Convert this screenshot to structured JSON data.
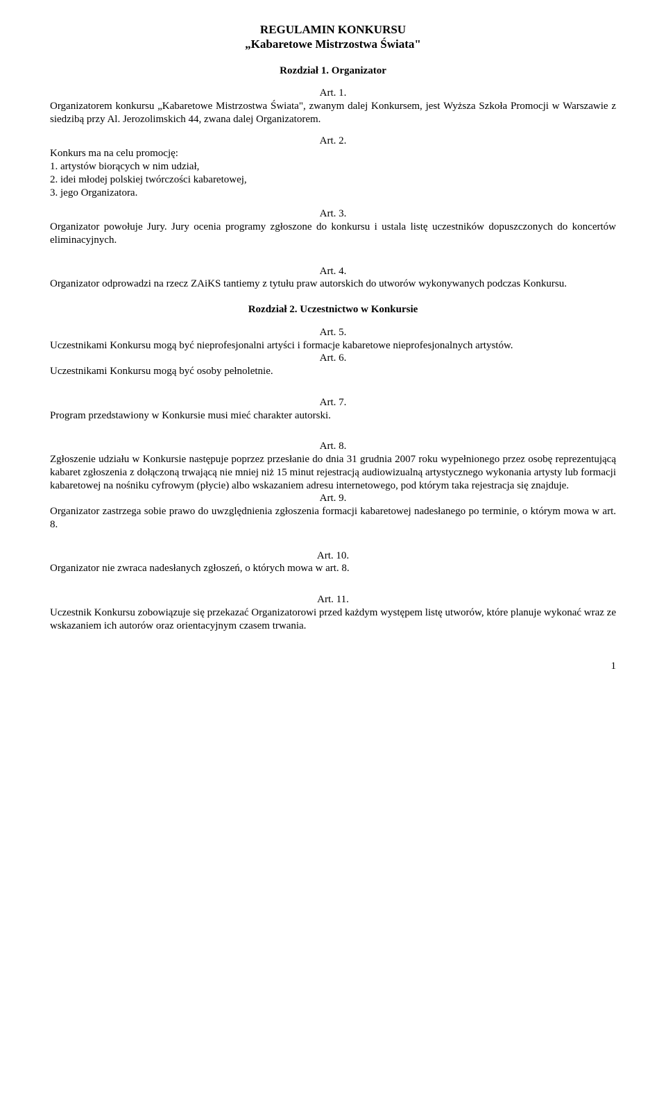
{
  "doc": {
    "title_main": "REGULAMIN KONKURSU",
    "title_sub": "„Kabaretowe Mistrzostwa Świata\"",
    "chapter1": "Rozdział 1. Organizator",
    "art1_label": "Art. 1.",
    "art1_body": "Organizatorem konkursu „Kabaretowe Mistrzostwa Świata\", zwanym dalej Konkursem, jest Wyższa Szkoła Promocji w Warszawie z siedzibą przy Al. Jerozolimskich 44, zwana dalej Organizatorem.",
    "art2_label": "Art. 2.",
    "art2_intro": "Konkurs ma na celu promocję:",
    "art2_item1": "1. artystów biorących w nim udział,",
    "art2_item2": "2. idei młodej polskiej twórczości kabaretowej,",
    "art2_item3": "3. jego Organizatora.",
    "art3_label": "Art. 3.",
    "art3_body": "Organizator powołuje Jury. Jury ocenia programy zgłoszone do konkursu i ustala listę uczestników dopuszczonych do koncertów eliminacyjnych.",
    "art4_label": "Art. 4.",
    "art4_body": "Organizator odprowadzi na rzecz ZAiKS tantiemy z tytułu praw autorskich do utworów wykonywanych podczas Konkursu.",
    "chapter2": "Rozdział 2. Uczestnictwo w Konkursie",
    "art5_label": "Art. 5.",
    "art5_body": "Uczestnikami Konkursu mogą być nieprofesjonalni artyści i formacje kabaretowe nieprofesjonalnych artystów.",
    "art6_label": "Art. 6.",
    "art6_body": "Uczestnikami Konkursu mogą być osoby pełnoletnie.",
    "art7_label": "Art. 7.",
    "art7_body": "Program przedstawiony w Konkursie musi mieć charakter autorski.",
    "art8_label": "Art. 8.",
    "art8_body": "Zgłoszenie udziału w Konkursie następuje poprzez przesłanie do dnia 31 grudnia 2007 roku wypełnionego przez osobę reprezentującą kabaret zgłoszenia z dołączoną trwającą nie mniej niż 15 minut rejestracją audiowizualną artystycznego wykonania artysty lub formacji kabaretowej na nośniku cyfrowym (płycie) albo wskazaniem adresu internetowego, pod którym taka rejestracja się znajduje.",
    "art9_label": "Art. 9.",
    "art9_body": "Organizator zastrzega sobie prawo do uwzględnienia zgłoszenia formacji kabaretowej nadesłanego po terminie, o którym mowa w art. 8.",
    "art10_label": "Art. 10.",
    "art10_body": "Organizator nie zwraca nadesłanych zgłoszeń, o których mowa w art. 8.",
    "art11_label": "Art. 11.",
    "art11_body": "Uczestnik Konkursu zobowiązuje się przekazać Organizatorowi przed każdym występem listę utworów, które planuje wykonać wraz ze wskazaniem ich autorów oraz orientacyjnym czasem trwania.",
    "page_number": "1"
  }
}
